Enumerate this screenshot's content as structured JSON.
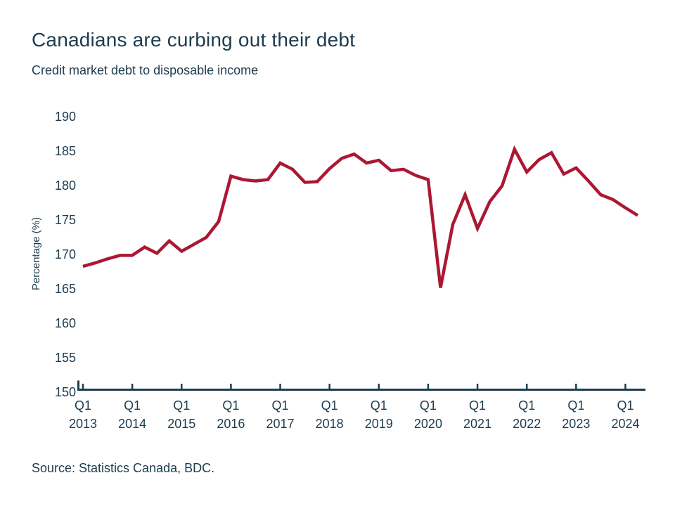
{
  "page": {
    "title": "Canadians are curbing out their debt",
    "subtitle": "Credit market debt to disposable income",
    "source": "Source: Statistics Canada, BDC."
  },
  "colors": {
    "text": "#1D3C4E",
    "axis": "#1D3C4E",
    "line": "#AC1733"
  },
  "chart_data": {
    "type": "line",
    "title": "Canadians are curbing out their debt",
    "subtitle": "Credit market debt to disposable income",
    "xlabel": "",
    "ylabel": "Percentage (%)",
    "ylim": [
      150,
      190
    ],
    "yticks": [
      150,
      155,
      160,
      165,
      170,
      175,
      180,
      185,
      190
    ],
    "grid": false,
    "legend": "none",
    "line_color": "#AC1733",
    "x": [
      "Q1 2013",
      "Q2 2013",
      "Q3 2013",
      "Q4 2013",
      "Q1 2014",
      "Q2 2014",
      "Q3 2014",
      "Q4 2014",
      "Q1 2015",
      "Q2 2015",
      "Q3 2015",
      "Q4 2015",
      "Q1 2016",
      "Q2 2016",
      "Q3 2016",
      "Q4 2016",
      "Q1 2017",
      "Q2 2017",
      "Q3 2017",
      "Q4 2017",
      "Q1 2018",
      "Q2 2018",
      "Q3 2018",
      "Q4 2018",
      "Q1 2019",
      "Q2 2019",
      "Q3 2019",
      "Q4 2019",
      "Q1 2020",
      "Q2 2020",
      "Q3 2020",
      "Q4 2020",
      "Q1 2021",
      "Q2 2021",
      "Q3 2021",
      "Q4 2021",
      "Q1 2022",
      "Q2 2022",
      "Q3 2022",
      "Q4 2022",
      "Q1 2023",
      "Q2 2023",
      "Q3 2023",
      "Q4 2023",
      "Q1 2024",
      "Q2 2024"
    ],
    "series": [
      {
        "name": "Credit market debt to disposable income",
        "values": [
          168.2,
          168.7,
          169.3,
          169.8,
          169.8,
          171.0,
          170.1,
          171.9,
          170.4,
          171.4,
          172.4,
          174.7,
          181.3,
          180.8,
          180.6,
          180.8,
          183.2,
          182.3,
          180.4,
          180.5,
          182.4,
          183.9,
          184.5,
          183.2,
          183.6,
          182.1,
          182.3,
          181.4,
          180.8,
          165.1,
          174.3,
          178.6,
          173.7,
          177.6,
          179.9,
          185.2,
          181.9,
          183.7,
          184.7,
          181.6,
          182.5,
          180.6,
          178.6,
          177.9,
          176.7,
          175.6
        ]
      }
    ],
    "x_tick_every": 4,
    "x_tick_labels": [
      [
        "Q1",
        "2013"
      ],
      [
        "Q1",
        "2014"
      ],
      [
        "Q1",
        "2015"
      ],
      [
        "Q1",
        "2016"
      ],
      [
        "Q1",
        "2017"
      ],
      [
        "Q1",
        "2018"
      ],
      [
        "Q1",
        "2019"
      ],
      [
        "Q1",
        "2020"
      ],
      [
        "Q1",
        "2021"
      ],
      [
        "Q1",
        "2022"
      ],
      [
        "Q1",
        "2023"
      ],
      [
        "Q1",
        "2024"
      ]
    ]
  }
}
